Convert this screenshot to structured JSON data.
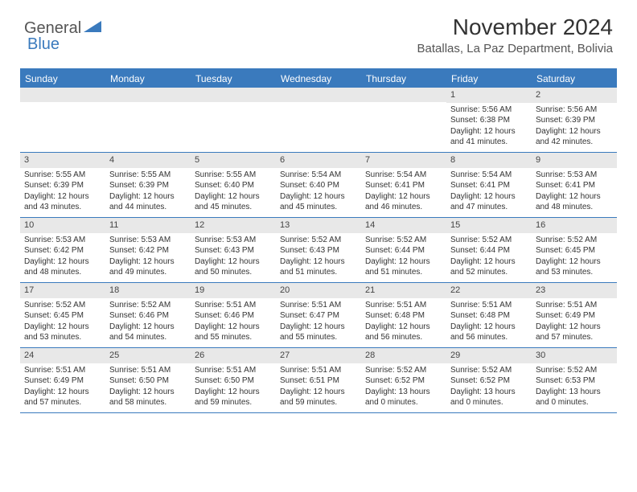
{
  "logo": {
    "text1": "General",
    "text2": "Blue"
  },
  "title": "November 2024",
  "subtitle": "Batallas, La Paz Department, Bolivia",
  "colors": {
    "accent": "#3a7abd",
    "header_text": "#ffffff",
    "daynum_bg": "#e8e8e8",
    "body_text": "#333333",
    "subtitle_text": "#555555"
  },
  "day_headers": [
    "Sunday",
    "Monday",
    "Tuesday",
    "Wednesday",
    "Thursday",
    "Friday",
    "Saturday"
  ],
  "weeks": [
    [
      {
        "n": "",
        "sr": "",
        "ss": "",
        "d1": "",
        "d2": ""
      },
      {
        "n": "",
        "sr": "",
        "ss": "",
        "d1": "",
        "d2": ""
      },
      {
        "n": "",
        "sr": "",
        "ss": "",
        "d1": "",
        "d2": ""
      },
      {
        "n": "",
        "sr": "",
        "ss": "",
        "d1": "",
        "d2": ""
      },
      {
        "n": "",
        "sr": "",
        "ss": "",
        "d1": "",
        "d2": ""
      },
      {
        "n": "1",
        "sr": "Sunrise: 5:56 AM",
        "ss": "Sunset: 6:38 PM",
        "d1": "Daylight: 12 hours",
        "d2": "and 41 minutes."
      },
      {
        "n": "2",
        "sr": "Sunrise: 5:56 AM",
        "ss": "Sunset: 6:39 PM",
        "d1": "Daylight: 12 hours",
        "d2": "and 42 minutes."
      }
    ],
    [
      {
        "n": "3",
        "sr": "Sunrise: 5:55 AM",
        "ss": "Sunset: 6:39 PM",
        "d1": "Daylight: 12 hours",
        "d2": "and 43 minutes."
      },
      {
        "n": "4",
        "sr": "Sunrise: 5:55 AM",
        "ss": "Sunset: 6:39 PM",
        "d1": "Daylight: 12 hours",
        "d2": "and 44 minutes."
      },
      {
        "n": "5",
        "sr": "Sunrise: 5:55 AM",
        "ss": "Sunset: 6:40 PM",
        "d1": "Daylight: 12 hours",
        "d2": "and 45 minutes."
      },
      {
        "n": "6",
        "sr": "Sunrise: 5:54 AM",
        "ss": "Sunset: 6:40 PM",
        "d1": "Daylight: 12 hours",
        "d2": "and 45 minutes."
      },
      {
        "n": "7",
        "sr": "Sunrise: 5:54 AM",
        "ss": "Sunset: 6:41 PM",
        "d1": "Daylight: 12 hours",
        "d2": "and 46 minutes."
      },
      {
        "n": "8",
        "sr": "Sunrise: 5:54 AM",
        "ss": "Sunset: 6:41 PM",
        "d1": "Daylight: 12 hours",
        "d2": "and 47 minutes."
      },
      {
        "n": "9",
        "sr": "Sunrise: 5:53 AM",
        "ss": "Sunset: 6:41 PM",
        "d1": "Daylight: 12 hours",
        "d2": "and 48 minutes."
      }
    ],
    [
      {
        "n": "10",
        "sr": "Sunrise: 5:53 AM",
        "ss": "Sunset: 6:42 PM",
        "d1": "Daylight: 12 hours",
        "d2": "and 48 minutes."
      },
      {
        "n": "11",
        "sr": "Sunrise: 5:53 AM",
        "ss": "Sunset: 6:42 PM",
        "d1": "Daylight: 12 hours",
        "d2": "and 49 minutes."
      },
      {
        "n": "12",
        "sr": "Sunrise: 5:53 AM",
        "ss": "Sunset: 6:43 PM",
        "d1": "Daylight: 12 hours",
        "d2": "and 50 minutes."
      },
      {
        "n": "13",
        "sr": "Sunrise: 5:52 AM",
        "ss": "Sunset: 6:43 PM",
        "d1": "Daylight: 12 hours",
        "d2": "and 51 minutes."
      },
      {
        "n": "14",
        "sr": "Sunrise: 5:52 AM",
        "ss": "Sunset: 6:44 PM",
        "d1": "Daylight: 12 hours",
        "d2": "and 51 minutes."
      },
      {
        "n": "15",
        "sr": "Sunrise: 5:52 AM",
        "ss": "Sunset: 6:44 PM",
        "d1": "Daylight: 12 hours",
        "d2": "and 52 minutes."
      },
      {
        "n": "16",
        "sr": "Sunrise: 5:52 AM",
        "ss": "Sunset: 6:45 PM",
        "d1": "Daylight: 12 hours",
        "d2": "and 53 minutes."
      }
    ],
    [
      {
        "n": "17",
        "sr": "Sunrise: 5:52 AM",
        "ss": "Sunset: 6:45 PM",
        "d1": "Daylight: 12 hours",
        "d2": "and 53 minutes."
      },
      {
        "n": "18",
        "sr": "Sunrise: 5:52 AM",
        "ss": "Sunset: 6:46 PM",
        "d1": "Daylight: 12 hours",
        "d2": "and 54 minutes."
      },
      {
        "n": "19",
        "sr": "Sunrise: 5:51 AM",
        "ss": "Sunset: 6:46 PM",
        "d1": "Daylight: 12 hours",
        "d2": "and 55 minutes."
      },
      {
        "n": "20",
        "sr": "Sunrise: 5:51 AM",
        "ss": "Sunset: 6:47 PM",
        "d1": "Daylight: 12 hours",
        "d2": "and 55 minutes."
      },
      {
        "n": "21",
        "sr": "Sunrise: 5:51 AM",
        "ss": "Sunset: 6:48 PM",
        "d1": "Daylight: 12 hours",
        "d2": "and 56 minutes."
      },
      {
        "n": "22",
        "sr": "Sunrise: 5:51 AM",
        "ss": "Sunset: 6:48 PM",
        "d1": "Daylight: 12 hours",
        "d2": "and 56 minutes."
      },
      {
        "n": "23",
        "sr": "Sunrise: 5:51 AM",
        "ss": "Sunset: 6:49 PM",
        "d1": "Daylight: 12 hours",
        "d2": "and 57 minutes."
      }
    ],
    [
      {
        "n": "24",
        "sr": "Sunrise: 5:51 AM",
        "ss": "Sunset: 6:49 PM",
        "d1": "Daylight: 12 hours",
        "d2": "and 57 minutes."
      },
      {
        "n": "25",
        "sr": "Sunrise: 5:51 AM",
        "ss": "Sunset: 6:50 PM",
        "d1": "Daylight: 12 hours",
        "d2": "and 58 minutes."
      },
      {
        "n": "26",
        "sr": "Sunrise: 5:51 AM",
        "ss": "Sunset: 6:50 PM",
        "d1": "Daylight: 12 hours",
        "d2": "and 59 minutes."
      },
      {
        "n": "27",
        "sr": "Sunrise: 5:51 AM",
        "ss": "Sunset: 6:51 PM",
        "d1": "Daylight: 12 hours",
        "d2": "and 59 minutes."
      },
      {
        "n": "28",
        "sr": "Sunrise: 5:52 AM",
        "ss": "Sunset: 6:52 PM",
        "d1": "Daylight: 13 hours",
        "d2": "and 0 minutes."
      },
      {
        "n": "29",
        "sr": "Sunrise: 5:52 AM",
        "ss": "Sunset: 6:52 PM",
        "d1": "Daylight: 13 hours",
        "d2": "and 0 minutes."
      },
      {
        "n": "30",
        "sr": "Sunrise: 5:52 AM",
        "ss": "Sunset: 6:53 PM",
        "d1": "Daylight: 13 hours",
        "d2": "and 0 minutes."
      }
    ]
  ]
}
